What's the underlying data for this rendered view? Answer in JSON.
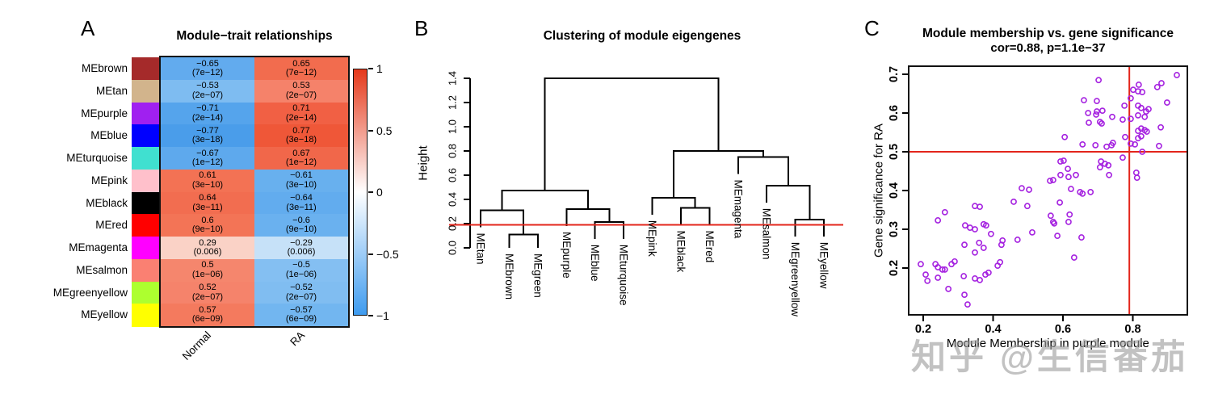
{
  "watermark": {
    "text": "知乎 @生信番茄",
    "color": "#9e9e9e"
  },
  "colors": {
    "accent_red_line": "#e3251b",
    "scatter_point": "#a522e0",
    "dendrogram_line": "#000000",
    "heatmap_border": "#111111"
  },
  "chart_data": [
    {
      "type": "heatmap",
      "panel": "A",
      "title": "Module−trait relationships",
      "columns": [
        "Normal",
        "RA"
      ],
      "rows": [
        "MEbrown",
        "MEtan",
        "MEpurple",
        "MEblue",
        "MEturquoise",
        "MEpink",
        "MEblack",
        "MEred",
        "MEmagenta",
        "MEsalmon",
        "MEgreenyellow",
        "MEyellow"
      ],
      "row_swatches": [
        "#a52a2a",
        "#d2b48c",
        "#a020f0",
        "#0000ff",
        "#40e0d0",
        "#ffc0cb",
        "#000000",
        "#ff0000",
        "#ff00ff",
        "#fa8072",
        "#adff2f",
        "#ffff00"
      ],
      "values": [
        [
          -0.65,
          0.65
        ],
        [
          -0.53,
          0.53
        ],
        [
          -0.71,
          0.71
        ],
        [
          -0.77,
          0.77
        ],
        [
          -0.67,
          0.67
        ],
        [
          0.61,
          -0.61
        ],
        [
          0.64,
          -0.64
        ],
        [
          0.6,
          -0.6
        ],
        [
          0.29,
          -0.29
        ],
        [
          0.5,
          -0.5
        ],
        [
          0.52,
          -0.52
        ],
        [
          0.57,
          -0.57
        ]
      ],
      "p_values": [
        [
          "(7e−12)",
          "(7e−12)"
        ],
        [
          "(2e−07)",
          "(2e−07)"
        ],
        [
          "(2e−14)",
          "(2e−14)"
        ],
        [
          "(3e−18)",
          "(3e−18)"
        ],
        [
          "(1e−12)",
          "(1e−12)"
        ],
        [
          "(3e−10)",
          "(3e−10)"
        ],
        [
          "(3e−11)",
          "(3e−11)"
        ],
        [
          "(9e−10)",
          "(9e−10)"
        ],
        [
          "(0.006)",
          "(0.006)"
        ],
        [
          "(1e−06)",
          "(1e−06)"
        ],
        [
          "(2e−07)",
          "(2e−07)"
        ],
        [
          "(6e−09)",
          "(6e−09)"
        ]
      ],
      "cell_colors": [
        [
          "#62abee",
          "#f26c4e"
        ],
        [
          "#7ebcf1",
          "#f5826a"
        ],
        [
          "#55a4ec",
          "#f16044"
        ],
        [
          "#4a9dea",
          "#ef5738"
        ],
        [
          "#5ea9ed",
          "#f1674a"
        ],
        [
          "#f37254",
          "#68b0ee"
        ],
        [
          "#f26d50",
          "#62acee"
        ],
        [
          "#f37456",
          "#6ab1ef"
        ],
        [
          "#fad2c6",
          "#c6e1f8"
        ],
        [
          "#f5866d",
          "#84bff2"
        ],
        [
          "#f5836b",
          "#80bdf1"
        ],
        [
          "#f47a5e",
          "#72b6f0"
        ]
      ],
      "colorbar": {
        "tick_labels": [
          "1",
          "0.5",
          "0",
          "−0.5",
          "−1"
        ],
        "top": "#e5391b",
        "mid": "#ffffff",
        "bottom": "#3e9bef"
      }
    },
    {
      "type": "dendrogram",
      "panel": "B",
      "title": "Clustering of module eigengenes",
      "ylabel": "Height",
      "yticks": [
        0.0,
        0.2,
        0.4,
        0.6,
        0.8,
        1.0,
        1.2,
        1.4
      ],
      "ylim": [
        0,
        1.45
      ],
      "leaves": [
        "MEtan",
        "MEbrown",
        "MEgreen",
        "MEpurple",
        "MEblue",
        "MEturquoise",
        "MEpink",
        "MEblack",
        "MEred",
        "MEmagenta",
        "MEsalmon",
        "MEgreenyellow",
        "MEyellow"
      ],
      "merges": [
        {
          "a": "MEbrown",
          "b": "MEgreen",
          "h": 0.11
        },
        {
          "a": "MEtan",
          "b": "m0",
          "h": 0.31
        },
        {
          "a": "MEblue",
          "b": "MEturquoise",
          "h": 0.215
        },
        {
          "a": "MEpurple",
          "b": "m2",
          "h": 0.32
        },
        {
          "a": "m1",
          "b": "m3",
          "h": 0.475
        },
        {
          "a": "MEblack",
          "b": "MEred",
          "h": 0.33
        },
        {
          "a": "MEpink",
          "b": "m5",
          "h": 0.415
        },
        {
          "a": "MEgreenyellow",
          "b": "MEyellow",
          "h": 0.235
        },
        {
          "a": "MEsalmon",
          "b": "m7",
          "h": 0.515
        },
        {
          "a": "MEmagenta",
          "b": "m8",
          "h": 0.75
        },
        {
          "a": "m6",
          "b": "m9",
          "h": 0.8
        },
        {
          "a": "m4",
          "b": "m10",
          "h": 1.4
        }
      ],
      "hang": 0.14,
      "cut_line_height": 0.19
    },
    {
      "type": "scatter",
      "panel": "C",
      "title": "Module membership vs. gene significance",
      "subtitle": "cor=0.88, p=1.1e−37",
      "xlabel": "Module Membership in purple module",
      "ylabel": "Gene significance for RA",
      "xticks": [
        0.2,
        0.4,
        0.6,
        0.8
      ],
      "yticks": [
        0.2,
        0.3,
        0.4,
        0.5,
        0.6,
        0.7
      ],
      "xlim": [
        0.158,
        0.956
      ],
      "ylim": [
        0.079,
        0.721
      ],
      "hline": 0.5,
      "vline": 0.79,
      "points": [
        [
          0.482,
          0.406
        ],
        [
          0.503,
          0.402
        ],
        [
          0.459,
          0.371
        ],
        [
          0.498,
          0.36
        ],
        [
          0.348,
          0.36
        ],
        [
          0.362,
          0.358
        ],
        [
          0.262,
          0.344
        ],
        [
          0.242,
          0.323
        ],
        [
          0.565,
          0.335
        ],
        [
          0.575,
          0.315
        ],
        [
          0.32,
          0.31
        ],
        [
          0.348,
          0.3
        ],
        [
          0.334,
          0.304
        ],
        [
          0.373,
          0.313
        ],
        [
          0.38,
          0.31
        ],
        [
          0.394,
          0.288
        ],
        [
          0.512,
          0.292
        ],
        [
          0.427,
          0.271
        ],
        [
          0.424,
          0.26
        ],
        [
          0.47,
          0.273
        ],
        [
          0.318,
          0.26
        ],
        [
          0.36,
          0.265
        ],
        [
          0.348,
          0.24
        ],
        [
          0.373,
          0.252
        ],
        [
          0.42,
          0.215
        ],
        [
          0.413,
          0.206
        ],
        [
          0.193,
          0.21
        ],
        [
          0.235,
          0.21
        ],
        [
          0.242,
          0.202
        ],
        [
          0.255,
          0.196
        ],
        [
          0.262,
          0.196
        ],
        [
          0.281,
          0.21
        ],
        [
          0.29,
          0.217
        ],
        [
          0.207,
          0.183
        ],
        [
          0.212,
          0.167
        ],
        [
          0.242,
          0.175
        ],
        [
          0.316,
          0.179
        ],
        [
          0.348,
          0.173
        ],
        [
          0.378,
          0.183
        ],
        [
          0.387,
          0.188
        ],
        [
          0.362,
          0.169
        ],
        [
          0.272,
          0.146
        ],
        [
          0.318,
          0.131
        ],
        [
          0.327,
          0.106
        ],
        [
          0.593,
          0.475
        ],
        [
          0.614,
          0.456
        ],
        [
          0.593,
          0.44
        ],
        [
          0.572,
          0.427
        ],
        [
          0.563,
          0.425
        ],
        [
          0.616,
          0.435
        ],
        [
          0.637,
          0.44
        ],
        [
          0.732,
          0.44
        ],
        [
          0.81,
          0.446
        ],
        [
          0.812,
          0.433
        ],
        [
          0.623,
          0.404
        ],
        [
          0.649,
          0.396
        ],
        [
          0.656,
          0.392
        ],
        [
          0.679,
          0.396
        ],
        [
          0.591,
          0.369
        ],
        [
          0.619,
          0.338
        ],
        [
          0.572,
          0.319
        ],
        [
          0.616,
          0.319
        ],
        [
          0.584,
          0.283
        ],
        [
          0.653,
          0.279
        ],
        [
          0.632,
          0.227
        ],
        [
          0.702,
          0.685
        ],
        [
          0.66,
          0.633
        ],
        [
          0.697,
          0.631
        ],
        [
          0.713,
          0.606
        ],
        [
          0.695,
          0.596
        ],
        [
          0.711,
          0.573
        ],
        [
          0.674,
          0.575
        ],
        [
          0.741,
          0.59
        ],
        [
          0.743,
          0.523
        ],
        [
          0.739,
          0.517
        ],
        [
          0.776,
          0.619
        ],
        [
          0.778,
          0.538
        ],
        [
          0.605,
          0.538
        ],
        [
          0.656,
          0.519
        ],
        [
          0.693,
          0.517
        ],
        [
          0.725,
          0.513
        ],
        [
          0.602,
          0.477
        ],
        [
          0.709,
          0.475
        ],
        [
          0.72,
          0.469
        ],
        [
          0.706,
          0.46
        ],
        [
          0.771,
          0.485
        ],
        [
          0.73,
          0.465
        ],
        [
          0.672,
          0.6
        ],
        [
          0.697,
          0.604
        ],
        [
          0.706,
          0.577
        ],
        [
          0.771,
          0.583
        ],
        [
          0.926,
          0.698
        ],
        [
          0.817,
          0.673
        ],
        [
          0.882,
          0.677
        ],
        [
          0.801,
          0.66
        ],
        [
          0.815,
          0.656
        ],
        [
          0.827,
          0.654
        ],
        [
          0.87,
          0.667
        ],
        [
          0.794,
          0.638
        ],
        [
          0.898,
          0.627
        ],
        [
          0.815,
          0.619
        ],
        [
          0.824,
          0.613
        ],
        [
          0.845,
          0.61
        ],
        [
          0.815,
          0.594
        ],
        [
          0.834,
          0.59
        ],
        [
          0.794,
          0.585
        ],
        [
          0.88,
          0.563
        ],
        [
          0.824,
          0.56
        ],
        [
          0.834,
          0.556
        ],
        [
          0.815,
          0.554
        ],
        [
          0.84,
          0.552
        ],
        [
          0.824,
          0.54
        ],
        [
          0.815,
          0.535
        ],
        [
          0.794,
          0.521
        ],
        [
          0.806,
          0.519
        ],
        [
          0.875,
          0.515
        ],
        [
          0.827,
          0.5
        ],
        [
          0.838,
          0.604
        ]
      ]
    }
  ]
}
